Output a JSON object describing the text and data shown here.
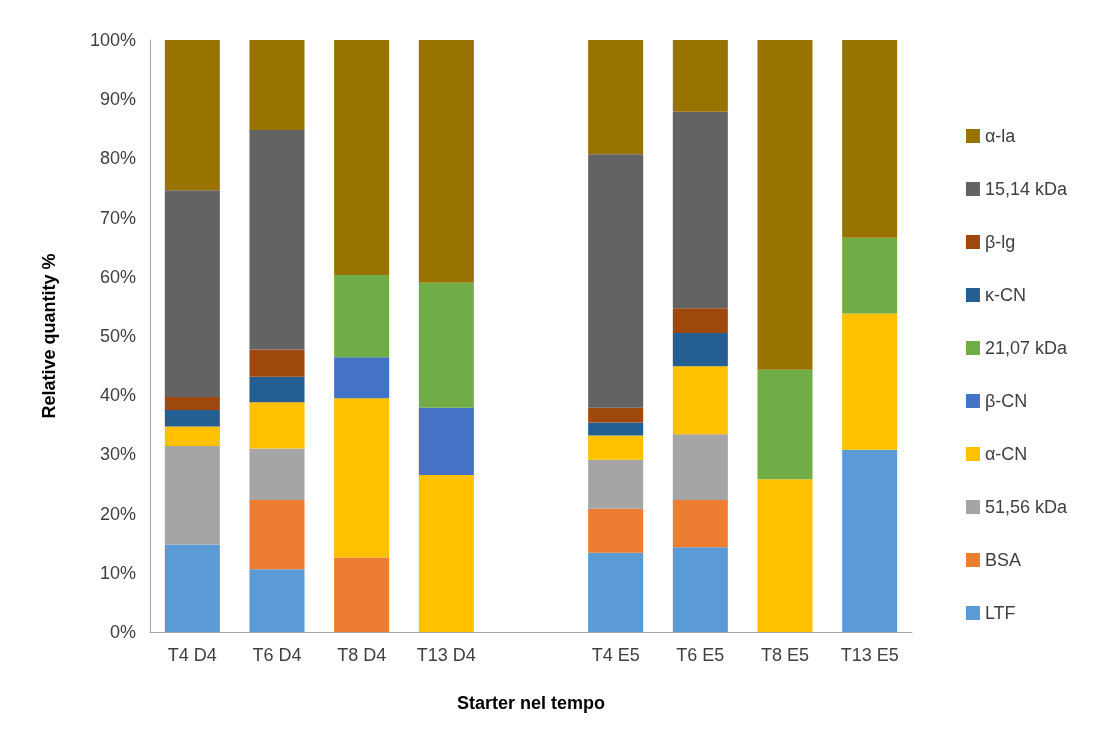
{
  "chart_data": {
    "type": "bar",
    "stacked": true,
    "xlabel": "Starter nel tempo",
    "ylabel": "Relative quantity %",
    "categories": [
      "T4 D4",
      "T6 D4",
      "T8 D4",
      "T13 D4",
      null,
      "T4 E5",
      "T6 E5",
      "T8 E5",
      "T13 E5"
    ],
    "ylim": [
      0,
      100
    ],
    "yticks": [
      {
        "value": 0,
        "label": "0%"
      },
      {
        "value": 10,
        "label": "10%"
      },
      {
        "value": 20,
        "label": "20%"
      },
      {
        "value": 30,
        "label": "30%"
      },
      {
        "value": 40,
        "label": "40%"
      },
      {
        "value": 50,
        "label": "50%"
      },
      {
        "value": 60,
        "label": "60%"
      },
      {
        "value": 70,
        "label": "70%"
      },
      {
        "value": 80,
        "label": "80%"
      },
      {
        "value": 90,
        "label": "90%"
      },
      {
        "value": 100,
        "label": "100%"
      }
    ],
    "grid": false,
    "legend": "right",
    "series": [
      {
        "name": "LTF",
        "color": "#5b9bd5",
        "values": [
          14.8,
          10.6,
          0,
          0,
          null,
          13.4,
          14.3,
          0,
          30.8
        ]
      },
      {
        "name": "BSA",
        "color": "#ed7d31",
        "values": [
          0,
          11.7,
          12.6,
          0,
          null,
          7.4,
          8.0,
          0,
          0
        ]
      },
      {
        "name": "51,56 kDa",
        "color": "#a5a5a5",
        "values": [
          16.6,
          8.7,
          0,
          0,
          null,
          8.3,
          11.1,
          0,
          0
        ]
      },
      {
        "name": "α-CN",
        "color": "#ffc000",
        "values": [
          3.3,
          7.8,
          26.9,
          26.5,
          null,
          4.1,
          11.5,
          25.8,
          23.0
        ]
      },
      {
        "name": "β-CN",
        "color": "#4472c4",
        "values": [
          0,
          0,
          6.9,
          11.4,
          null,
          0,
          0,
          0,
          0
        ]
      },
      {
        "name": "21,07 kDa",
        "color": "#70ad47",
        "values": [
          0,
          0,
          13.9,
          21.1,
          null,
          0,
          0,
          18.5,
          12.8
        ]
      },
      {
        "name": "κ-CN",
        "color": "#255e91",
        "values": [
          2.8,
          4.3,
          0,
          0,
          null,
          2.2,
          5.6,
          0,
          0
        ]
      },
      {
        "name": "β-lg",
        "color": "#9e480e",
        "values": [
          2.2,
          4.6,
          0,
          0,
          null,
          2.5,
          4.2,
          0,
          0
        ]
      },
      {
        "name": "15,14 kDa",
        "color": "#636363",
        "values": [
          34.9,
          37.1,
          0,
          0,
          null,
          42.8,
          33.2,
          0,
          0
        ]
      },
      {
        "name": "α-la",
        "color": "#997300",
        "values": [
          25.4,
          15.2,
          39.7,
          41.0,
          null,
          19.3,
          12.1,
          55.7,
          33.4
        ]
      }
    ]
  }
}
